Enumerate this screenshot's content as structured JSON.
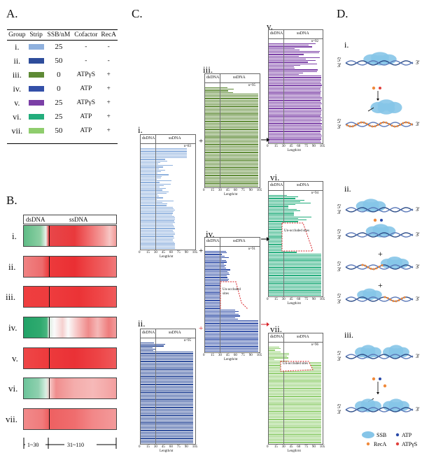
{
  "panel_labels": {
    "A": "A.",
    "B": "B.",
    "C": "C.",
    "D": "D."
  },
  "table": {
    "headers": [
      "Group",
      "Strip",
      "SSB/nM",
      "Cofactor",
      "RecA"
    ],
    "rows": [
      {
        "group": "i.",
        "color": "#8fb1de",
        "ssb": "25",
        "cofactor": "-",
        "reca": "-"
      },
      {
        "group": "ii.",
        "color": "#2e4d9b",
        "ssb": "50",
        "cofactor": "-",
        "reca": "-"
      },
      {
        "group": "iii.",
        "color": "#5e8a35",
        "ssb": "0",
        "cofactor": "ATPγS",
        "reca": "+"
      },
      {
        "group": "iv.",
        "color": "#3350a8",
        "ssb": "0",
        "cofactor": "ATP",
        "reca": "+"
      },
      {
        "group": "v.",
        "color": "#7b3fa6",
        "ssb": "25",
        "cofactor": "ATPγS",
        "reca": "+"
      },
      {
        "group": "vi.",
        "color": "#23ad7c",
        "ssb": "25",
        "cofactor": "ATP",
        "reca": "+"
      },
      {
        "group": "vii.",
        "color": "#8fcd6d",
        "ssb": "50",
        "cofactor": "ATP",
        "reca": "+"
      }
    ]
  },
  "heatmap": {
    "ds_label": "dsDNA",
    "ss_label": "ssDNA",
    "rows": [
      "i.",
      "ii.",
      "iii.",
      "iv.",
      "v.",
      "vi.",
      "vii."
    ],
    "range_left": "1~30",
    "range_right": "31~110"
  },
  "panels_c": {
    "ds_label": "dsDNA",
    "ss_label": "ssDNA",
    "xlabel": "Length/nt",
    "tick_labels": [
      "0",
      "15",
      "30",
      "45",
      "60",
      "75",
      "90",
      "105"
    ],
    "panels": [
      {
        "id": "i.",
        "n": "n=83",
        "color": "#8fb1de"
      },
      {
        "id": "ii.",
        "n": "n=95",
        "color": "#2e4d9b"
      },
      {
        "id": "iii.",
        "n": "n=95",
        "color": "#5e8a35"
      },
      {
        "id": "iv.",
        "n": "n=91",
        "color": "#3350a8"
      },
      {
        "id": "v.",
        "n": "n=92",
        "color": "#7b3fa6"
      },
      {
        "id": "vi.",
        "n": "n=94",
        "color": "#23ad7c"
      },
      {
        "id": "vii.",
        "n": "n=96",
        "color": "#8fcd6d"
      }
    ],
    "annotations": {
      "iv": "Un-occluded sites",
      "vi": "Un-occluded sites",
      "vii": "Un-occluded sites"
    },
    "operators": {
      "plus_top": "+",
      "plus_mid": "+",
      "plus_bottom": "+"
    }
  },
  "scheme": {
    "end5": "5'",
    "end3": "3'",
    "sections": [
      "i.",
      "ii.",
      "iii."
    ],
    "plus": "+",
    "legend": {
      "ssb": "SSB",
      "atp": "ATP",
      "reca": "RecA",
      "atpgs": "ATPγS"
    },
    "colors": {
      "ssb": "#86c5e8",
      "atp": "#2a4aa8",
      "reca": "#f08a3c",
      "atpgs": "#e0403c",
      "dna": "#2c4c88"
    }
  }
}
